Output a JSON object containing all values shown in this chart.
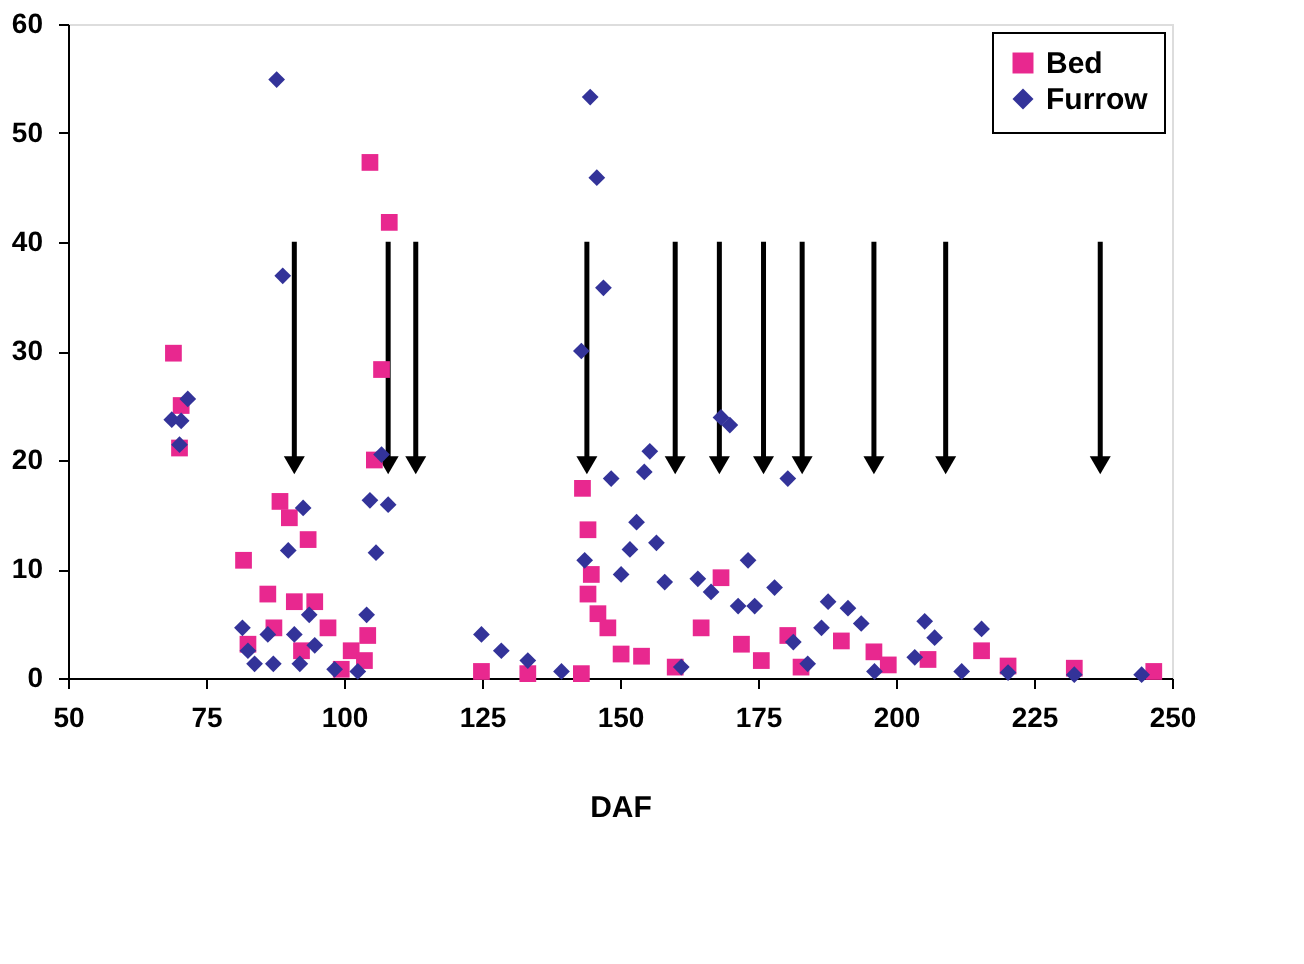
{
  "chart_data": {
    "type": "scatter",
    "xlabel": "DAF",
    "xlim": [
      50,
      250
    ],
    "xticks": [
      50,
      75,
      100,
      125,
      150,
      175,
      200,
      225,
      250
    ],
    "ylim": [
      0,
      60
    ],
    "yticks": [
      0,
      10,
      20,
      30,
      40,
      50,
      60
    ],
    "grid": false,
    "legend": "top right",
    "series": [
      {
        "name": "Bed",
        "color": "#e8288f",
        "marker": "square",
        "x": [
          69.1,
          70.5,
          70.2,
          81.8,
          86.2,
          88.4,
          90.1,
          93.5,
          91,
          94.7,
          97.1,
          87.3,
          82.6,
          92.3,
          101.3,
          103.7,
          104.3,
          104.7,
          108.2,
          106.8,
          105.5,
          99.5,
          124.9,
          133.3,
          143,
          143.2,
          144.2,
          144.8,
          144.2,
          146,
          147.8,
          150.2,
          153.9,
          160,
          164.7,
          168.3,
          172,
          175.6,
          180.4,
          182.8,
          190.1,
          196,
          198.6,
          205.8,
          215.5,
          220.3,
          232.3,
          246.7
        ],
        "values": [
          29.8,
          25,
          21.1,
          10.8,
          7.7,
          16.2,
          14.7,
          12.7,
          7,
          7,
          4.6,
          4.6,
          3.1,
          2.5,
          2.5,
          1.6,
          3.9,
          47.3,
          41.8,
          28.3,
          20,
          0.8,
          0.6,
          0.4,
          0.4,
          17.4,
          13.6,
          9.5,
          7.7,
          5.9,
          4.6,
          2.2,
          2,
          1,
          4.6,
          9.2,
          3.1,
          1.6,
          3.9,
          1,
          3.4,
          2.4,
          1.2,
          1.7,
          2.5,
          1.1,
          0.9,
          0.6
        ]
      },
      {
        "name": "Furrow",
        "color": "#333399",
        "marker": "diamond",
        "x": [
          87.8,
          88.9,
          71.7,
          68.8,
          70.5,
          70.2,
          92.6,
          89.9,
          81.6,
          82.6,
          83.8,
          87.2,
          86.2,
          91,
          92,
          93.7,
          94.7,
          98.3,
          102.5,
          104.7,
          108,
          105.8,
          104.1,
          106.8,
          144.6,
          145.8,
          147,
          143,
          143.6,
          148.4,
          154.4,
          155.4,
          153,
          151.8,
          156.6,
          150.2,
          158.1,
          168.3,
          169.9,
          164.1,
          166.5,
          173.2,
          171.4,
          178,
          174.4,
          180.4,
          181.4,
          124.9,
          128.5,
          133.3,
          139.4,
          161.1,
          184,
          187.7,
          191.3,
          186.5,
          193.7,
          196.1,
          205.2,
          207,
          203.4,
          215.5,
          211.9,
          220.3,
          232.3,
          244.5
        ],
        "values": [
          54.9,
          36.9,
          25.6,
          23.7,
          23.6,
          21.4,
          15.6,
          11.7,
          4.6,
          2.5,
          1.3,
          1.3,
          4,
          4,
          1.3,
          5.8,
          3,
          0.8,
          0.6,
          16.3,
          15.9,
          11.5,
          5.8,
          20.5,
          53.3,
          45.9,
          35.8,
          30,
          10.8,
          18.3,
          18.9,
          20.8,
          14.3,
          11.8,
          12.4,
          9.5,
          8.8,
          23.9,
          23.2,
          9.1,
          7.9,
          10.8,
          6.6,
          8.3,
          6.6,
          18.3,
          3.3,
          4,
          2.5,
          1.6,
          0.6,
          1,
          1.3,
          7,
          6.4,
          4.6,
          5,
          0.6,
          5.2,
          3.7,
          1.9,
          4.5,
          0.6,
          0.5,
          0.3,
          0.3
        ]
      }
    ],
    "ref_lines": [
      {
        "axis": "x",
        "value": 91,
        "line_style": "solid",
        "color": "#000000"
      },
      {
        "axis": "x",
        "value": 108,
        "line_style": "solid",
        "color": "#000000"
      },
      {
        "axis": "x",
        "value": 113,
        "line_style": "solid",
        "color": "#000000"
      },
      {
        "axis": "x",
        "value": 144,
        "line_style": "solid",
        "color": "#000000"
      },
      {
        "axis": "x",
        "value": 160,
        "line_style": "solid",
        "color": "#000000"
      },
      {
        "axis": "x",
        "value": 168,
        "line_style": "solid",
        "color": "#000000"
      },
      {
        "axis": "x",
        "value": 176,
        "line_style": "solid",
        "color": "#000000"
      },
      {
        "axis": "x",
        "value": 183,
        "line_style": "solid",
        "color": "#000000"
      },
      {
        "axis": "x",
        "value": 196,
        "line_style": "solid",
        "color": "#000000"
      },
      {
        "axis": "x",
        "value": 209,
        "line_style": "solid",
        "color": "#000000"
      },
      {
        "axis": "x",
        "value": 237,
        "line_style": "solid",
        "color": "#000000"
      }
    ]
  }
}
